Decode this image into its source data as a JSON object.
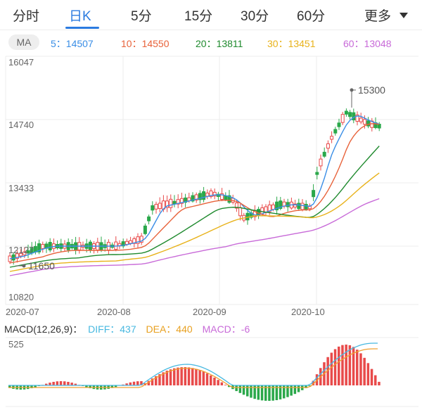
{
  "tabs": [
    {
      "label": "分时",
      "active": false
    },
    {
      "label": "日K",
      "active": true
    },
    {
      "label": "5分",
      "active": false
    },
    {
      "label": "15分",
      "active": false
    },
    {
      "label": "30分",
      "active": false
    },
    {
      "label": "60分",
      "active": false
    }
  ],
  "more_label": "更多",
  "ma_header": {
    "pill": "MA",
    "items": [
      {
        "text": "5：14507",
        "color": "#3a8ee6"
      },
      {
        "text": "10：14550",
        "color": "#e8623a"
      },
      {
        "text": "20：13811",
        "color": "#1f8a2e"
      },
      {
        "text": "30：13451",
        "color": "#e8b21a"
      },
      {
        "text": "60：13048",
        "color": "#c86ad8"
      }
    ]
  },
  "price_axis": [
    "16047",
    "14740",
    "13433",
    "12127",
    "10820"
  ],
  "annotations": {
    "high": "15300",
    "low": "11650"
  },
  "date_axis": [
    "2020-07",
    "2020-08",
    "2020-09",
    "2020-10"
  ],
  "macd_header": {
    "title": "MACD(12,26,9)：",
    "diff": "DIFF：437",
    "dea": "DEA：440",
    "macd": "MACD：-6"
  },
  "macd_axis": {
    "top": "525"
  },
  "colors": {
    "up": "#e84a4a",
    "down": "#2aa84a",
    "ma5": "#3a8ee6",
    "ma10": "#e8623a",
    "ma20": "#1f8a2e",
    "ma30": "#e8b21a",
    "ma60": "#c86ad8",
    "diff": "#47b8e0",
    "dea": "#f0a030"
  }
}
